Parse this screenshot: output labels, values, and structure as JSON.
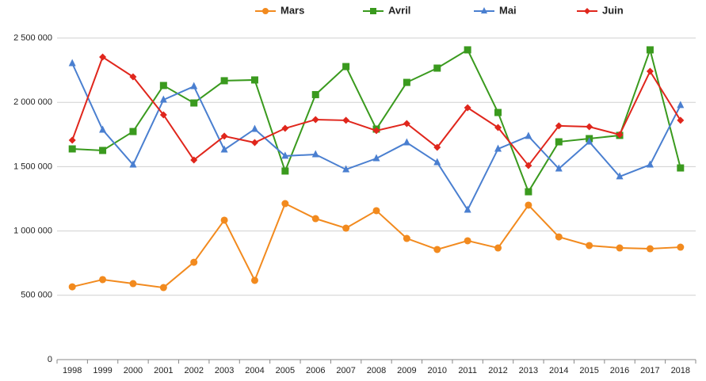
{
  "chart_data": {
    "type": "line",
    "categories": [
      "1998",
      "1999",
      "2000",
      "2001",
      "2002",
      "2003",
      "2004",
      "2005",
      "2006",
      "2007",
      "2008",
      "2009",
      "2010",
      "2011",
      "2012",
      "2013",
      "2014",
      "2015",
      "2016",
      "2017",
      "2018"
    ],
    "series": [
      {
        "name": "Mars",
        "color": "#f28a1e",
        "marker": "circle",
        "values": [
          566000,
          622000,
          591000,
          560000,
          757000,
          1084000,
          616000,
          1213000,
          1096000,
          1022000,
          1158000,
          942000,
          856000,
          924000,
          868000,
          1201000,
          954000,
          887000,
          868000,
          862000,
          874000
        ]
      },
      {
        "name": "Avril",
        "color": "#3a9a1e",
        "marker": "square",
        "values": [
          1638000,
          1626000,
          1773000,
          2131000,
          1995000,
          2168000,
          2174000,
          1466000,
          2060000,
          2278000,
          1792000,
          2155000,
          2266000,
          2408000,
          1921000,
          1305000,
          1693000,
          1718000,
          1743000,
          2408000,
          1490000
        ]
      },
      {
        "name": "Mai",
        "color": "#4a7fd0",
        "marker": "triangle",
        "values": [
          2303000,
          1786000,
          1515000,
          2020000,
          2124000,
          1632000,
          1792000,
          1583000,
          1595000,
          1478000,
          1564000,
          1687000,
          1533000,
          1164000,
          1638000,
          1737000,
          1484000,
          1693000,
          1423000,
          1515000,
          1977000
        ]
      },
      {
        "name": "Juin",
        "color": "#e0261c",
        "marker": "diamond",
        "values": [
          1706000,
          2352000,
          2198000,
          1903000,
          1552000,
          1737000,
          1687000,
          1798000,
          1866000,
          1860000,
          1780000,
          1835000,
          1650000,
          1958000,
          1804000,
          1509000,
          1817000,
          1810000,
          1749000,
          2241000,
          1860000
        ]
      }
    ],
    "ylim": [
      0,
      2500000
    ],
    "yticks": [
      0,
      {
        "value": 500000,
        "label": "500 000"
      },
      {
        "value": 1000000,
        "label": "1 000 000"
      },
      {
        "value": 1500000,
        "label": "1 500 000"
      },
      {
        "value": 2000000,
        "label": "2 000 000"
      },
      {
        "value": 2500000,
        "label": "2 500 000"
      }
    ],
    "grid": true,
    "legend": "top"
  }
}
